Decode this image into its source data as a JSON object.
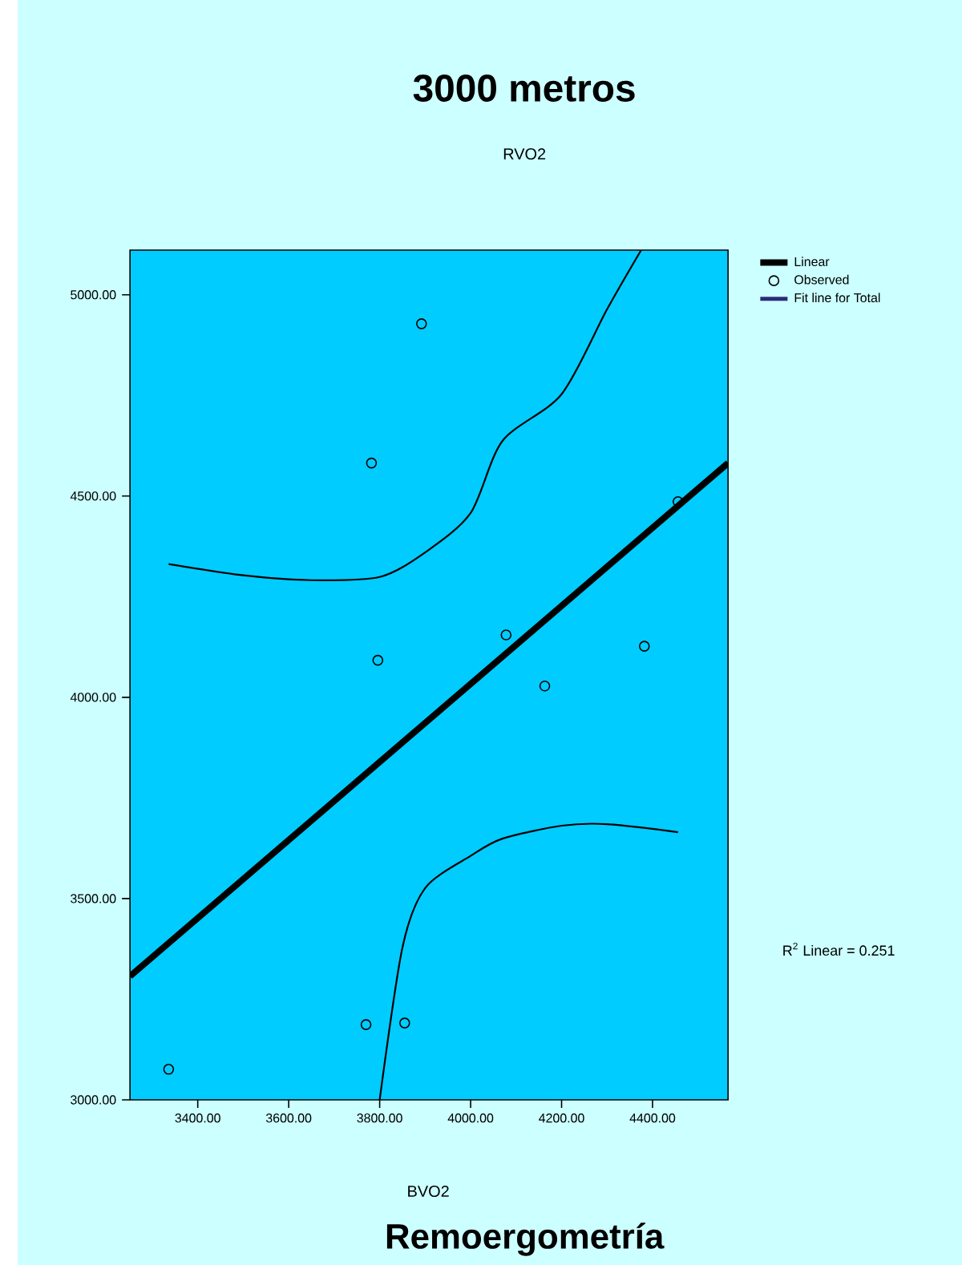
{
  "chart_data": {
    "type": "scatter",
    "title": "3000 metros",
    "xlabel": "BVO2",
    "xlim": [
      3251,
      4566
    ],
    "ylim": [
      3000,
      5111
    ],
    "xticks": [
      {
        "value": 3400,
        "label": "3400.00"
      },
      {
        "value": 3600,
        "label": "3600.00"
      },
      {
        "value": 3800,
        "label": "3800.00"
      },
      {
        "value": 4000,
        "label": "4000.00"
      },
      {
        "value": 4200,
        "label": "4200.00"
      },
      {
        "value": 4400,
        "label": "4400.00"
      }
    ],
    "yticks": [
      {
        "value": 3000,
        "label": "3000.00"
      },
      {
        "value": 3500,
        "label": "3500.00"
      },
      {
        "value": 4000,
        "label": "4000.00"
      },
      {
        "value": 4500,
        "label": "4500.00"
      },
      {
        "value": 5000,
        "label": "5000.00"
      }
    ],
    "legend": "right",
    "annotations": [
      "R$^{2}$ Linear = 0.251",
      "Remoergometría",
      "Fit line for Total",
      "RVO2"
    ],
    "series": [
      {
        "type": "line",
        "color": "#000000",
        "x": [
          3336,
          3500,
          3650,
          3800,
          3900,
          4000,
          4070,
          4200,
          4300,
          4375
        ],
        "values": [
          4331,
          4303,
          4291,
          4299,
          4360,
          4458,
          4637,
          4753,
          4964,
          5111
        ]
      },
      {
        "type": "line",
        "color": "#000000",
        "x": [
          3800,
          3850,
          3900,
          4000,
          4070,
          4200,
          4300,
          4456
        ],
        "values": [
          3000,
          3378,
          3526,
          3606,
          3649,
          3681,
          3685,
          3665
        ]
      },
      {
        "type": "line",
        "name": "Linear",
        "color": "#000000",
        "x": [
          3251,
          4566
        ],
        "values": [
          3307,
          4582
        ]
      },
      {
        "name": "Observed",
        "marker": "circle",
        "color": "#000000",
        "x": [
          3336,
          3782,
          3892,
          3796,
          3770,
          3855,
          4078,
          4163,
          4382,
          4456
        ],
        "values": [
          3076,
          4582,
          4928,
          4092,
          3187,
          3191,
          4155,
          4028,
          4127,
          4486
        ]
      }
    ]
  }
}
